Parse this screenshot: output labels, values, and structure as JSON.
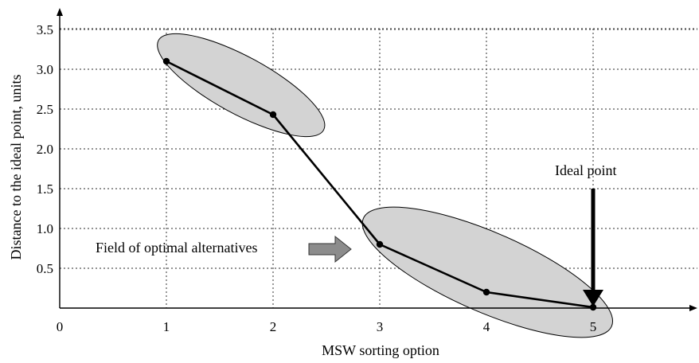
{
  "chart_data": {
    "type": "line",
    "xlabel": "MSW sorting option",
    "ylabel": "Distance to the ideal point, units",
    "xlim": [
      0,
      6
    ],
    "ylim": [
      0,
      3.6
    ],
    "xticks": [
      0,
      1,
      2,
      3,
      4,
      5
    ],
    "xtick_labels": [
      "0",
      "1",
      "2",
      "3",
      "4",
      "5"
    ],
    "yticks": [
      0.5,
      1.0,
      1.5,
      2.0,
      2.5,
      3.0,
      3.5
    ],
    "ytick_labels": [
      "0.5",
      "1.0",
      "1.5",
      "2.0",
      "2.5",
      "3.0",
      "3.5"
    ],
    "grid": true,
    "series": [
      {
        "x": [
          1,
          2,
          3,
          4,
          5
        ],
        "y": [
          3.1,
          2.43,
          0.8,
          0.2,
          0.01
        ]
      }
    ],
    "annotations": {
      "field_label": "Field of optimal alternatives",
      "ideal_label": "Ideal point"
    },
    "colors": {
      "line": "#000000",
      "ellipse_fill": "#d3d3d3",
      "arrow_fill": "#8c8c8c",
      "grid": "#555555"
    }
  }
}
